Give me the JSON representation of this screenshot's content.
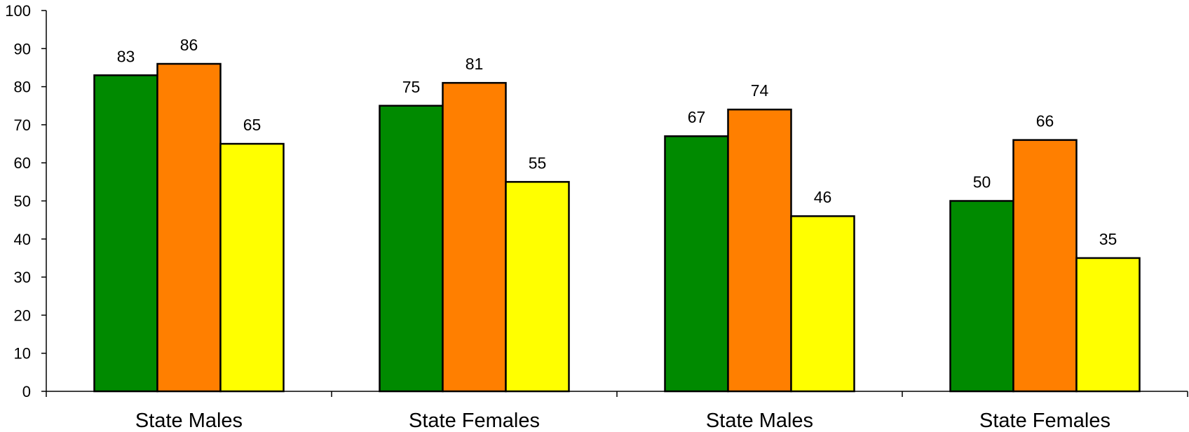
{
  "chart_data": {
    "type": "bar",
    "title": "",
    "xlabel": "",
    "ylabel": "",
    "ylim": [
      0,
      100
    ],
    "yticks": [
      0,
      10,
      20,
      30,
      40,
      50,
      60,
      70,
      80,
      90,
      100
    ],
    "grid": false,
    "legend": "none",
    "categories": [
      "State Males",
      "State Females",
      "State Males",
      "State Females"
    ],
    "series": [
      {
        "color": "#008a00",
        "values": [
          83,
          75,
          67,
          50
        ]
      },
      {
        "color": "#ff7f00",
        "values": [
          86,
          81,
          74,
          66
        ]
      },
      {
        "color": "#ffff00",
        "values": [
          65,
          55,
          46,
          35
        ]
      }
    ]
  }
}
